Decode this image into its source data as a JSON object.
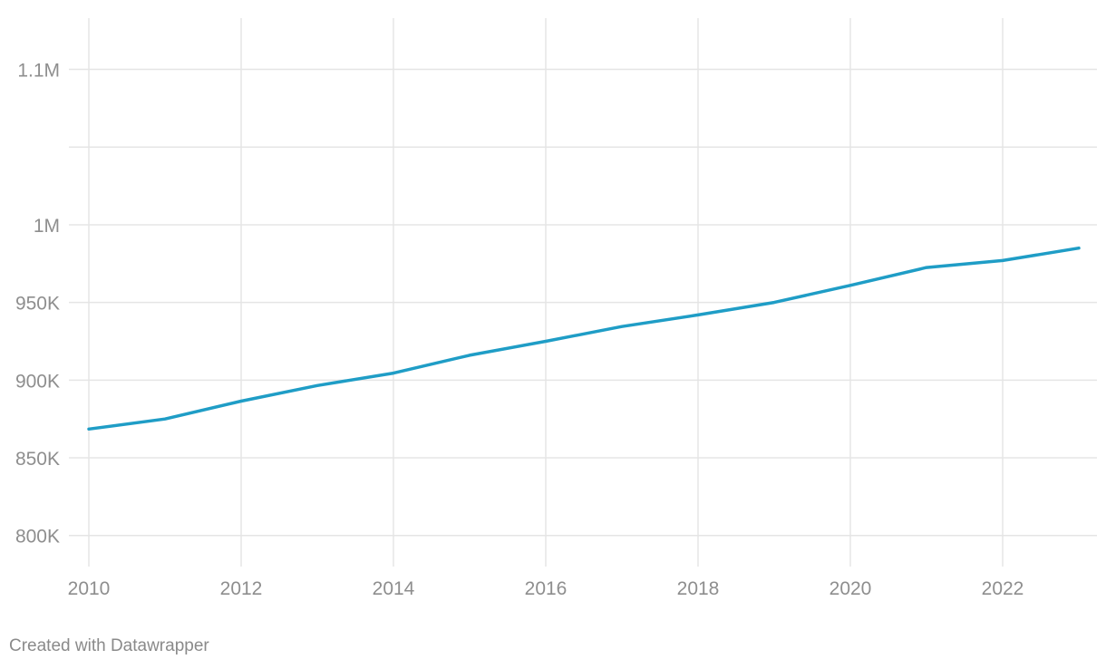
{
  "chart_data": {
    "type": "line",
    "title": "",
    "xlabel": "",
    "ylabel": "",
    "x": [
      2010,
      2011,
      2012,
      2013,
      2014,
      2015,
      2016,
      2017,
      2018,
      2019,
      2020,
      2021,
      2022,
      2023
    ],
    "series": [
      {
        "values": [
          868500,
          875000,
          886500,
          896500,
          904500,
          916000,
          925000,
          934500,
          942000,
          950000,
          961000,
          972500,
          977000,
          985000
        ],
        "color": "#1f9dc6"
      }
    ],
    "xlim": [
      2010,
      2023
    ],
    "ylim": [
      780000,
      1133000
    ],
    "x_ticks": [
      2010,
      2012,
      2014,
      2016,
      2018,
      2020,
      2022
    ],
    "x_tick_labels": [
      "2010",
      "2012",
      "2014",
      "2016",
      "2018",
      "2020",
      "2022"
    ],
    "y_ticks": [
      800000,
      850000,
      900000,
      950000,
      1000000,
      1100000
    ],
    "y_tick_labels": [
      "800K",
      "850K",
      "900K",
      "950K",
      "1M",
      "1.1M"
    ],
    "extra_gridlines_y": [
      1050000
    ],
    "grid": true,
    "legend": "none"
  },
  "footer": {
    "credit": "Created with Datawrapper"
  },
  "colors": {
    "line": "#1f9dc6",
    "grid": "#e5e5e5",
    "tick_text": "#8e8e8e"
  }
}
